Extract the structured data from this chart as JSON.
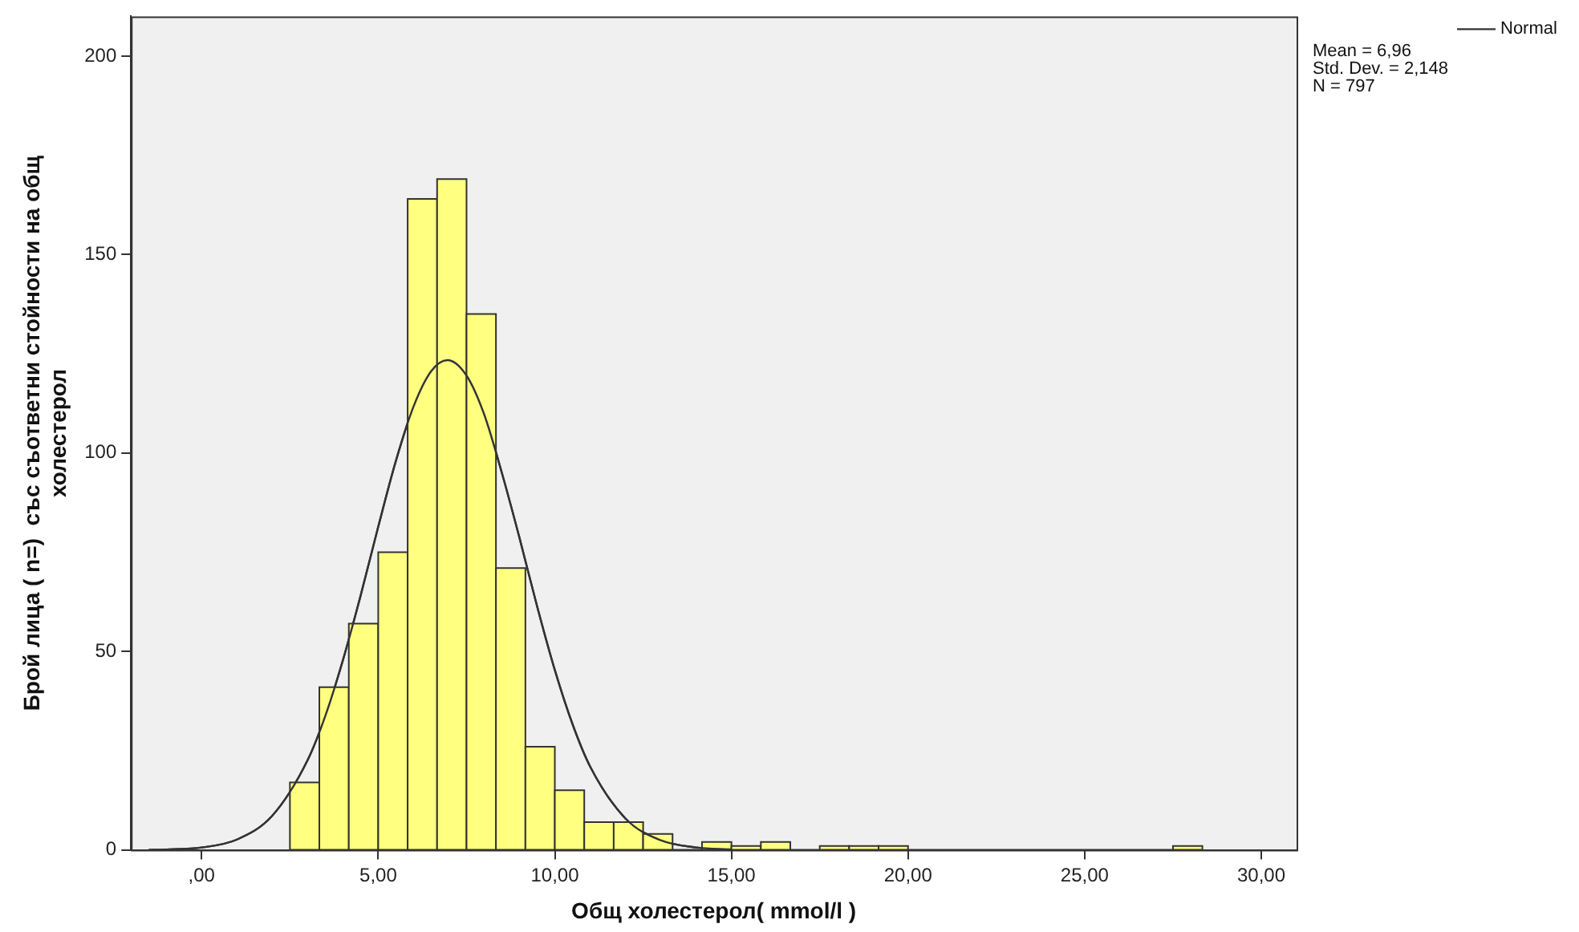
{
  "chart_data": {
    "type": "histogram",
    "xlabel": "Общ холестерол( mmol/l )",
    "ylabel": "Брой лица ( n=)  със съответни стойности на общ холестерол",
    "bins": [
      2.5,
      3.333,
      4.167,
      5,
      5.833,
      6.667,
      7.5,
      8.333,
      9.167,
      10,
      10.833,
      11.667,
      12.5,
      13.333,
      14.167,
      15,
      15.833,
      16.667,
      17.5,
      18.333,
      19.167,
      20,
      20.833,
      21.667,
      22.5,
      23.333,
      24.167,
      25,
      25.833,
      26.667,
      27.5,
      28.333
    ],
    "values": [
      17,
      41,
      57,
      75,
      164,
      169,
      135,
      71,
      26,
      15,
      7,
      7,
      4,
      0,
      2,
      1,
      2,
      0,
      1,
      1,
      1,
      0,
      0,
      0,
      0,
      0,
      0,
      0,
      0,
      0,
      1
    ],
    "color": "#ffff80",
    "series": [
      {
        "name": "Normal",
        "type": "line",
        "color": "#333333",
        "x": [
          -1.5,
          -1,
          0,
          1,
          2,
          3,
          3.5,
          4,
          4.5,
          5,
          5.5,
          6,
          6.5,
          6.96,
          7.5,
          8,
          8.5,
          9,
          9.5,
          10,
          10.5,
          11,
          12,
          13,
          14,
          15
        ],
        "values": [
          0,
          0.1,
          0.6,
          2.6,
          8.6,
          22.6,
          33.7,
          47.8,
          64,
          81.4,
          98,
          111.7,
          120.6,
          123.4,
          119.5,
          109.7,
          95,
          78.6,
          61.3,
          45.3,
          31.7,
          21,
          7.9,
          2.4,
          0.6,
          0.1
        ]
      }
    ],
    "xlim": [
      -2,
      31
    ],
    "xticks": [
      {
        "value": 0,
        "label": ",00"
      },
      {
        "value": 5,
        "label": "5,00"
      },
      {
        "value": 10,
        "label": "10,00"
      },
      {
        "value": 15,
        "label": "15,00"
      },
      {
        "value": 20,
        "label": "20,00"
      },
      {
        "value": 25,
        "label": "25,00"
      },
      {
        "value": 30,
        "label": "30,00"
      }
    ],
    "ylim": [
      0,
      210
    ],
    "yticks": [
      0,
      50,
      100,
      150,
      200
    ],
    "grid": false,
    "legend": "top right",
    "marker": "none",
    "line_style": "solid",
    "annotations": [
      "Mean = 6,96",
      "Std. Dev. = 2,148",
      "N = 797"
    ]
  }
}
